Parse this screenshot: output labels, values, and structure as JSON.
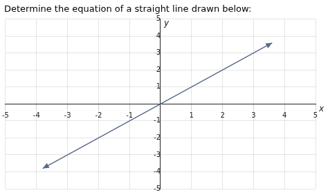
{
  "chart_data": {
    "type": "line",
    "title": "Determine the equation of a straight line drawn below:",
    "x": [
      -3.8,
      3.6
    ],
    "values": [
      -3.8,
      3.6
    ],
    "color": "#5a6a8a",
    "xlim": [
      -5,
      5
    ],
    "ylim": [
      -5,
      5
    ],
    "xticks": [
      -5,
      -4,
      -3,
      -2,
      -1,
      1,
      2,
      3,
      4,
      5
    ],
    "yticks": [
      -5,
      -4,
      -3,
      -2,
      -1,
      1,
      2,
      3,
      4,
      5
    ],
    "xlabel": "x",
    "ylabel": "y",
    "grid": true
  }
}
